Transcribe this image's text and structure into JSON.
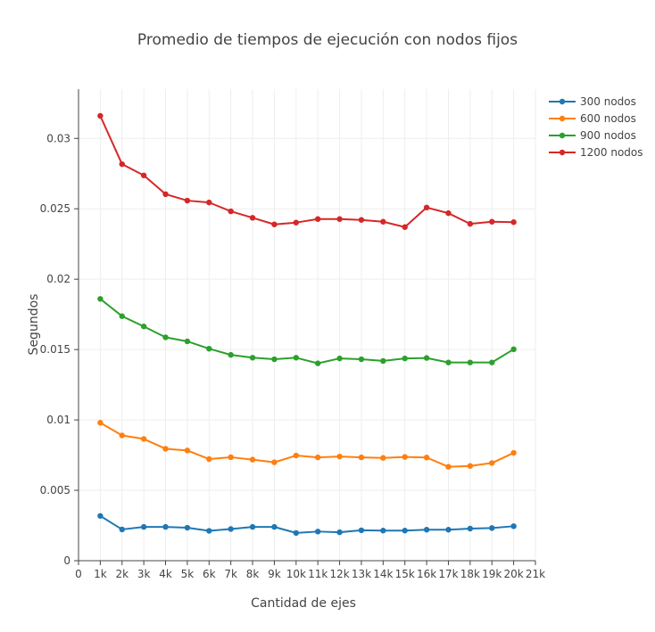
{
  "chart_data": {
    "type": "line",
    "title": "Promedio de tiempos de ejecución con nodos fijos",
    "xlabel": "Cantidad de ejes",
    "ylabel": "Segundos",
    "xlim": [
      0,
      21000
    ],
    "ylim": [
      0,
      0.0335
    ],
    "xticks": [
      0,
      1000,
      2000,
      3000,
      4000,
      5000,
      6000,
      7000,
      8000,
      9000,
      10000,
      11000,
      12000,
      13000,
      14000,
      15000,
      16000,
      17000,
      18000,
      19000,
      20000,
      21000
    ],
    "xtick_labels": [
      "0",
      "1k",
      "2k",
      "3k",
      "4k",
      "5k",
      "6k",
      "7k",
      "8k",
      "9k",
      "10k",
      "11k",
      "12k",
      "13k",
      "14k",
      "15k",
      "16k",
      "17k",
      "18k",
      "19k",
      "20k",
      "21k"
    ],
    "yticks": [
      0,
      0.005,
      0.01,
      0.015,
      0.02,
      0.025,
      0.03
    ],
    "ytick_labels": [
      "0",
      "0.005",
      "0.01",
      "0.015",
      "0.02",
      "0.025",
      "0.03"
    ],
    "grid": true,
    "legend_position": "top-right",
    "x": [
      1000,
      2000,
      3000,
      4000,
      5000,
      6000,
      7000,
      8000,
      9000,
      10000,
      11000,
      12000,
      13000,
      14000,
      15000,
      16000,
      17000,
      18000,
      19000,
      20000
    ],
    "series": [
      {
        "name": "300 nodos",
        "color": "#1f77b4",
        "values": [
          0.00318,
          0.00222,
          0.0024,
          0.0024,
          0.00234,
          0.00212,
          0.00225,
          0.0024,
          0.0024,
          0.00197,
          0.00207,
          0.00202,
          0.00216,
          0.00214,
          0.00214,
          0.0022,
          0.0022,
          0.00228,
          0.00232,
          0.00245
        ]
      },
      {
        "name": "600 nodos",
        "color": "#ff7f0e",
        "values": [
          0.0098,
          0.0089,
          0.00865,
          0.00795,
          0.00783,
          0.00722,
          0.00735,
          0.00718,
          0.00699,
          0.00747,
          0.00734,
          0.0074,
          0.00734,
          0.0073,
          0.00737,
          0.00733,
          0.00667,
          0.00673,
          0.00694,
          0.00766
        ]
      },
      {
        "name": "900 nodos",
        "color": "#2ca02c",
        "values": [
          0.0186,
          0.01737,
          0.01664,
          0.01587,
          0.01558,
          0.01506,
          0.01462,
          0.01442,
          0.01431,
          0.01442,
          0.01402,
          0.01437,
          0.01431,
          0.01419,
          0.01437,
          0.0144,
          0.01408,
          0.01408,
          0.01408,
          0.01502
        ]
      },
      {
        "name": "1200 nodos",
        "color": "#d62728",
        "values": [
          0.0316,
          0.02817,
          0.02737,
          0.02604,
          0.02558,
          0.02545,
          0.02482,
          0.02436,
          0.02389,
          0.02402,
          0.02427,
          0.02427,
          0.02421,
          0.02408,
          0.0237,
          0.02509,
          0.02469,
          0.02393,
          0.02408,
          0.02405
        ]
      }
    ]
  }
}
